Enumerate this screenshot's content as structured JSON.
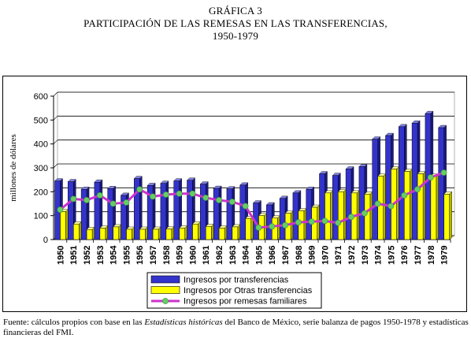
{
  "title_line1": "GRÁFICA 3",
  "title_line2": "PARTICIPACIÓN DE LAS REMESAS EN LAS TRANSFERENCIAS,",
  "title_line3": "1950-1979",
  "source_prefix": "Fuente: cálculos propios con base en las ",
  "source_italic": "Estadísticas históricas",
  "source_suffix": " del Banco de México, serie balanza de pagos 1950-1978 y estadísticas financieras del FMI.",
  "colors": {
    "transferencias": "#3333cc",
    "otras": "#ffff00",
    "remesas_line": "#cc33cc",
    "remesas_marker": "#66cc66"
  },
  "chart_data": {
    "type": "bar",
    "ylabel": "millones de dólares",
    "xlabel": "",
    "ylim": [
      0,
      600
    ],
    "yticks": [
      0,
      100,
      200,
      300,
      400,
      500,
      600
    ],
    "grid": true,
    "legend_position": "bottom",
    "categories": [
      "1950",
      "1951",
      "1952",
      "1953",
      "1954",
      "1955",
      "1956",
      "1957",
      "1958",
      "1959",
      "1960",
      "1961",
      "1962",
      "1963",
      "1964",
      "1965",
      "1966",
      "1967",
      "1968",
      "1969",
      "1970",
      "1971",
      "1972",
      "1973",
      "1974",
      "1975",
      "1976",
      "1977",
      "1978",
      "1979"
    ],
    "series": [
      {
        "name": "Ingresos por transferencias",
        "kind": "bar",
        "values": [
          245,
          242,
          210,
          240,
          213,
          185,
          255,
          226,
          235,
          245,
          248,
          232,
          214,
          212,
          228,
          153,
          145,
          172,
          195,
          210,
          275,
          268,
          295,
          305,
          420,
          435,
          472,
          487,
          527,
          468
        ]
      },
      {
        "name": "Ingresos por Otras transferencias",
        "kind": "bar",
        "values": [
          117,
          65,
          42,
          48,
          53,
          43,
          43,
          43,
          44,
          48,
          65,
          55,
          48,
          53,
          88,
          100,
          90,
          110,
          120,
          135,
          195,
          200,
          195,
          190,
          265,
          295,
          285,
          275,
          265,
          190
        ]
      },
      {
        "name": "Ingresos por remesas familiares",
        "kind": "line",
        "values": [
          125,
          170,
          165,
          185,
          150,
          155,
          210,
          180,
          188,
          192,
          192,
          175,
          165,
          158,
          140,
          50,
          55,
          60,
          72,
          75,
          78,
          70,
          95,
          110,
          150,
          140,
          185,
          210,
          260,
          280
        ]
      }
    ]
  }
}
